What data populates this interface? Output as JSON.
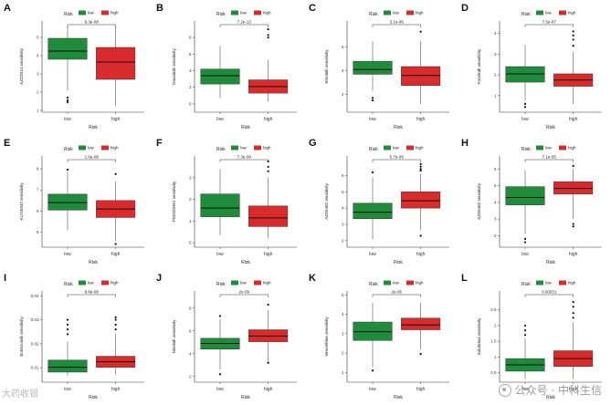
{
  "legend": {
    "title": "Risk",
    "items": [
      {
        "label": "low",
        "color": "#1e8c3a"
      },
      {
        "label": "high",
        "color": "#d92b2b"
      }
    ]
  },
  "watermark": {
    "text": "公众号 · 中科生信",
    "left_text": "大药收银"
  },
  "chart_data": [
    {
      "panel": "A",
      "type": "boxplot",
      "ylabel": "AZD2014 sensitivity",
      "xlabel": "Risk",
      "categories": [
        "low",
        "high"
      ],
      "pvalue": "9.3e-08",
      "yticks": [
        1,
        2,
        3,
        4,
        5
      ],
      "ylim": [
        0.9,
        5.9
      ],
      "boxes": [
        {
          "group": "low",
          "min": 2.1,
          "q1": 3.8,
          "median": 4.25,
          "q3": 4.95,
          "max": 5.6,
          "outliers": [
            1.7,
            1.55,
            1.45
          ]
        },
        {
          "group": "high",
          "min": 1.25,
          "q1": 2.7,
          "median": 3.65,
          "q3": 4.45,
          "max": 5.6,
          "outliers": []
        }
      ]
    },
    {
      "panel": "B",
      "type": "boxplot",
      "ylabel": "Dasatinib sensitivity",
      "xlabel": "Risk",
      "categories": [
        "low",
        "high"
      ],
      "pvalue": "7.2e-13",
      "yticks": [
        0,
        2,
        4,
        6,
        8
      ],
      "ylim": [
        -1,
        10
      ],
      "boxes": [
        {
          "group": "low",
          "min": 0.7,
          "q1": 2.4,
          "median": 3.4,
          "q3": 4.2,
          "max": 7.0,
          "outliers": []
        },
        {
          "group": "high",
          "min": 0.3,
          "q1": 1.3,
          "median": 2.1,
          "q3": 2.9,
          "max": 5.3,
          "outliers": [
            8.0,
            8.3,
            9.0
          ]
        }
      ]
    },
    {
      "panel": "C",
      "type": "boxplot",
      "ylabel": "Erlotinib sensitivity",
      "xlabel": "Risk",
      "categories": [
        "low",
        "high"
      ],
      "pvalue": "3.1e-06",
      "yticks": [
        2,
        4,
        6
      ],
      "ylim": [
        0.5,
        8.2
      ],
      "boxes": [
        {
          "group": "low",
          "min": 2.3,
          "q1": 3.7,
          "median": 4.1,
          "q3": 4.8,
          "max": 6.5,
          "outliers": [
            1.7,
            1.5
          ]
        },
        {
          "group": "high",
          "min": 1.2,
          "q1": 2.75,
          "median": 3.6,
          "q3": 4.35,
          "max": 6.5,
          "outliers": [
            7.3
          ]
        }
      ]
    },
    {
      "panel": "D",
      "type": "boxplot",
      "ylabel": "Foretinib sensitivity",
      "xlabel": "Risk",
      "categories": [
        "low",
        "high"
      ],
      "pvalue": "7.5e-07",
      "yticks": [
        1,
        2,
        3,
        4
      ],
      "ylim": [
        0.2,
        4.6
      ],
      "boxes": [
        {
          "group": "low",
          "min": 0.75,
          "q1": 1.65,
          "median": 2.05,
          "q3": 2.4,
          "max": 3.45,
          "outliers": [
            0.6,
            0.45
          ]
        },
        {
          "group": "high",
          "min": 0.6,
          "q1": 1.45,
          "median": 1.75,
          "q3": 2.05,
          "max": 3.1,
          "outliers": [
            3.4,
            3.7,
            3.9,
            4.1
          ]
        }
      ]
    },
    {
      "panel": "E",
      "type": "boxplot",
      "ylabel": "KU-55933 sensitivity",
      "xlabel": "Risk",
      "categories": [
        "low",
        "high"
      ],
      "pvalue": "1.6e-08",
      "yticks": [
        5,
        6,
        7,
        8
      ],
      "ylim": [
        4.3,
        8.6
      ],
      "boxes": [
        {
          "group": "low",
          "min": 5.1,
          "q1": 6.05,
          "median": 6.4,
          "q3": 6.8,
          "max": 7.85,
          "outliers": [
            7.95
          ]
        },
        {
          "group": "high",
          "min": 4.6,
          "q1": 5.7,
          "median": 6.1,
          "q3": 6.5,
          "max": 7.4,
          "outliers": [
            7.75,
            4.45
          ]
        }
      ]
    },
    {
      "panel": "F",
      "type": "boxplot",
      "ylabel": "PD0325901 sensitivity",
      "xlabel": "Risk",
      "categories": [
        "low",
        "high"
      ],
      "pvalue": "7.3e-08",
      "yticks": [
        0,
        1,
        2,
        3
      ],
      "ylim": [
        -0.2,
        4.0
      ],
      "boxes": [
        {
          "group": "low",
          "min": 0.35,
          "q1": 1.2,
          "median": 1.6,
          "q3": 2.25,
          "max": 3.4,
          "outliers": []
        },
        {
          "group": "high",
          "min": 0.2,
          "q1": 0.75,
          "median": 1.15,
          "q3": 1.7,
          "max": 3.0,
          "outliers": [
            3.3,
            3.5,
            3.75
          ]
        }
      ]
    },
    {
      "panel": "G",
      "type": "boxplot",
      "ylabel": "AZD6482 sensitivity",
      "xlabel": "Risk",
      "categories": [
        "low",
        "high"
      ],
      "pvalue": "5.7e-09",
      "yticks": [
        2,
        3,
        4,
        5,
        6
      ],
      "ylim": [
        1.6,
        7.2
      ],
      "boxes": [
        {
          "group": "low",
          "min": 2.05,
          "q1": 3.35,
          "median": 3.75,
          "q3": 4.3,
          "max": 5.9,
          "outliers": [
            6.2
          ]
        },
        {
          "group": "high",
          "min": 2.65,
          "q1": 4.0,
          "median": 4.45,
          "q3": 5.0,
          "max": 6.1,
          "outliers": [
            6.3,
            6.4,
            6.55,
            6.7,
            2.3
          ]
        }
      ]
    },
    {
      "panel": "H",
      "type": "boxplot",
      "ylabel": "AZD6482 sensitivity",
      "xlabel": "Risk",
      "categories": [
        "low",
        "high"
      ],
      "pvalue": "7.1e-05",
      "yticks": [
        2,
        3,
        4,
        5,
        6
      ],
      "ylim": [
        1.3,
        6.8
      ],
      "boxes": [
        {
          "group": "low",
          "min": 2.1,
          "q1": 3.85,
          "median": 4.3,
          "q3": 4.95,
          "max": 5.95,
          "outliers": [
            1.8,
            1.6
          ]
        },
        {
          "group": "high",
          "min": 3.0,
          "q1": 4.5,
          "median": 4.85,
          "q3": 5.25,
          "max": 6.0,
          "outliers": [
            6.2,
            2.7,
            2.55
          ]
        }
      ]
    },
    {
      "panel": "I",
      "type": "boxplot",
      "ylabel": "Bortezomib sensitivity",
      "xlabel": "Risk",
      "categories": [
        "low",
        "high"
      ],
      "pvalue": "8.8e-08",
      "yticks": [
        0.01,
        0.02,
        0.03,
        0.04
      ],
      "ylim": [
        0.004,
        0.042
      ],
      "boxes": [
        {
          "group": "low",
          "min": 0.0068,
          "q1": 0.0082,
          "median": 0.0102,
          "q3": 0.0132,
          "max": 0.021,
          "outliers": [
            0.024,
            0.026,
            0.028,
            0.03
          ]
        },
        {
          "group": "high",
          "min": 0.0072,
          "q1": 0.0102,
          "median": 0.0125,
          "q3": 0.0148,
          "max": 0.024,
          "outliers": [
            0.026,
            0.028,
            0.03,
            0.031
          ]
        }
      ]
    },
    {
      "panel": "J",
      "type": "boxplot",
      "ylabel": "Nilotinib sensitivity",
      "xlabel": "Risk",
      "categories": [
        "low",
        "high"
      ],
      "pvalue": "2e-09",
      "yticks": [
        2,
        4,
        6,
        8
      ],
      "ylim": [
        1.5,
        9.5
      ],
      "boxes": [
        {
          "group": "low",
          "min": 2.6,
          "q1": 4.4,
          "median": 4.9,
          "q3": 5.35,
          "max": 7.0,
          "outliers": [
            7.3,
            2.2
          ]
        },
        {
          "group": "high",
          "min": 3.3,
          "q1": 5.05,
          "median": 5.55,
          "q3": 6.1,
          "max": 7.8,
          "outliers": [
            8.3,
            3.2
          ]
        }
      ]
    },
    {
      "panel": "K",
      "type": "boxplot",
      "ylabel": "Vinorelbine sensitivity",
      "xlabel": "Risk",
      "categories": [
        "low",
        "high"
      ],
      "pvalue": "2e-05",
      "yticks": [
        1,
        2,
        3,
        4,
        5
      ],
      "ylim": [
        0.5,
        5.2
      ],
      "boxes": [
        {
          "group": "low",
          "min": 1.3,
          "q1": 2.65,
          "median": 3.1,
          "q3": 3.6,
          "max": 4.6,
          "outliers": [
            1.1
          ]
        },
        {
          "group": "high",
          "min": 2.2,
          "q1": 3.2,
          "median": 3.45,
          "q3": 3.8,
          "max": 4.6,
          "outliers": [
            1.95
          ]
        }
      ]
    },
    {
      "panel": "L",
      "type": "boxplot",
      "ylabel": "Salubrinal sensitivity",
      "xlabel": "Risk",
      "categories": [
        "low",
        "high"
      ],
      "pvalue": "0.00031",
      "yticks": [
        0.5,
        1.0,
        1.5,
        2.0,
        2.5
      ],
      "ylim": [
        0.2,
        3.1
      ],
      "boxes": [
        {
          "group": "low",
          "min": 0.3,
          "q1": 0.55,
          "median": 0.75,
          "q3": 0.95,
          "max": 1.6,
          "outliers": [
            1.7,
            1.85,
            2.0
          ]
        },
        {
          "group": "high",
          "min": 0.3,
          "q1": 0.7,
          "median": 0.95,
          "q3": 1.2,
          "max": 2.1,
          "outliers": [
            2.25,
            2.4,
            2.6,
            2.75
          ]
        }
      ]
    }
  ]
}
